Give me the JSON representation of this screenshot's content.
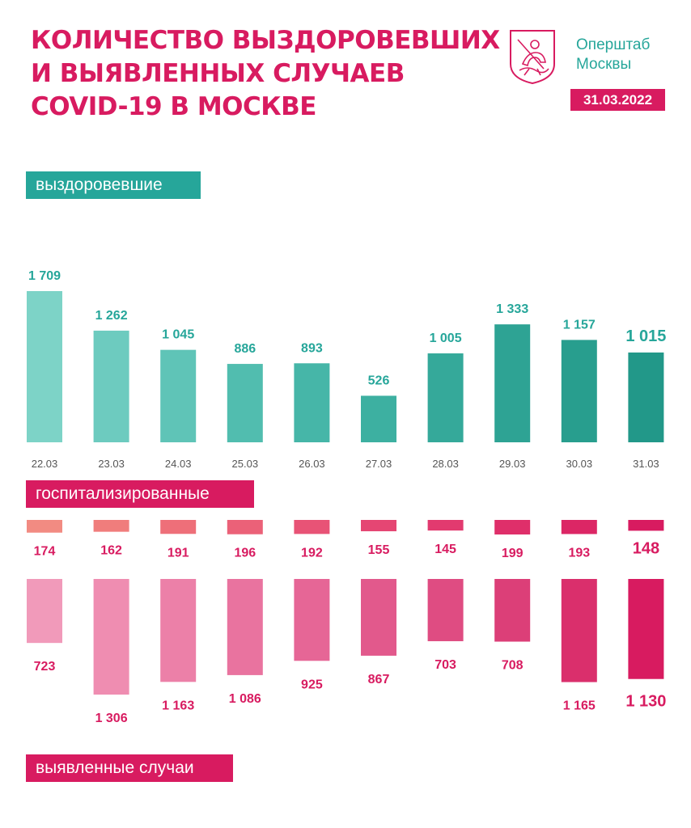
{
  "header": {
    "title_lines": [
      "КОЛИЧЕСТВО ВЫЗДОРОВЕВШИХ",
      "И ВЫЯВЛЕННЫХ СЛУЧАЕВ",
      "COVID-19 В МОСКВЕ"
    ],
    "org_lines": [
      "Оперштаб",
      "Москвы"
    ],
    "date": "31.03.2022",
    "logo": "moscow-coat-of-arms-icon"
  },
  "labels": {
    "recovered": "выздоровевшие",
    "hospitalized": "госпитализированные",
    "detected": "выявленные случаи"
  },
  "colors": {
    "title": "#d81b60",
    "org": "#26a69a",
    "date_badge": "#d81b60",
    "recovered_label_bg": "#26a69a",
    "hospitalized_label_bg": "#d81b60",
    "detected_label_bg": "#d81b60",
    "value_teal": "#26a69a",
    "value_pink": "#d81b60"
  },
  "chart_data": [
    {
      "type": "bar",
      "categories": [
        "22.03",
        "23.03",
        "24.03",
        "25.03",
        "26.03",
        "27.03",
        "28.03",
        "29.03",
        "30.03",
        "31.03"
      ],
      "series": [
        {
          "name": "выздоровевшие",
          "values": [
            1709,
            1262,
            1045,
            886,
            893,
            526,
            1005,
            1333,
            1157,
            1015
          ]
        }
      ],
      "value_labels": [
        "1 709",
        "1 262",
        "1 045",
        "886",
        "893",
        "526",
        "1 005",
        "1 333",
        "1 157",
        "1 015"
      ],
      "colors": [
        "#7dd3c7",
        "#6dcbbf",
        "#5fc4b7",
        "#51bdaf",
        "#46b6a8",
        "#3db0a1",
        "#35a99a",
        "#2ea394",
        "#289e8e",
        "#229889"
      ]
    },
    {
      "type": "bar",
      "categories": [
        "22.03",
        "23.03",
        "24.03",
        "25.03",
        "26.03",
        "27.03",
        "28.03",
        "29.03",
        "30.03",
        "31.03"
      ],
      "series": [
        {
          "name": "госпитализированные",
          "values": [
            174,
            162,
            191,
            196,
            192,
            155,
            145,
            199,
            193,
            148
          ]
        }
      ],
      "value_labels": [
        "174",
        "162",
        "191",
        "196",
        "192",
        "155",
        "145",
        "199",
        "193",
        "148"
      ],
      "colors": [
        "#f28b82",
        "#f07d7c",
        "#ee6f79",
        "#eb6178",
        "#e85376",
        "#e54673",
        "#e23a6f",
        "#df2f6a",
        "#dc2665",
        "#d81b60"
      ]
    },
    {
      "type": "bar",
      "categories": [
        "22.03",
        "23.03",
        "24.03",
        "25.03",
        "26.03",
        "27.03",
        "28.03",
        "29.03",
        "30.03",
        "31.03"
      ],
      "series": [
        {
          "name": "выявленные случаи",
          "values": [
            723,
            1306,
            1163,
            1086,
            925,
            867,
            703,
            708,
            1165,
            1130
          ]
        }
      ],
      "value_labels": [
        "723",
        "1 306",
        "1 163",
        "1 086",
        "925",
        "867",
        "703",
        "708",
        "1 165",
        "1 130"
      ],
      "colors": [
        "#f19aba",
        "#ef8db1",
        "#ec80a8",
        "#e9739f",
        "#e66696",
        "#e2598c",
        "#df4c82",
        "#dc3f78",
        "#da2f6c",
        "#d81b60"
      ]
    }
  ]
}
